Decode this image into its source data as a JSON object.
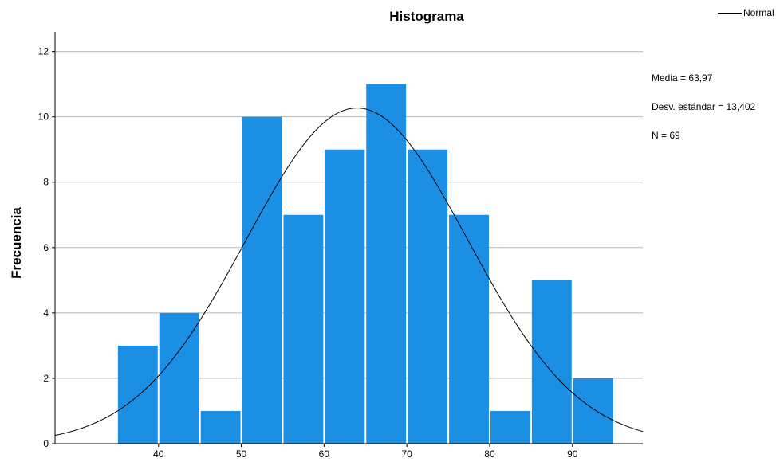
{
  "chart_data": {
    "type": "bar",
    "title": "Histograma",
    "ylabel": "Frecuencia",
    "xlabel": "",
    "bin_width": 5,
    "bins": [
      {
        "start": 35,
        "end": 40,
        "count": 3
      },
      {
        "start": 40,
        "end": 45,
        "count": 4
      },
      {
        "start": 45,
        "end": 50,
        "count": 1
      },
      {
        "start": 50,
        "end": 55,
        "count": 10
      },
      {
        "start": 55,
        "end": 60,
        "count": 7
      },
      {
        "start": 60,
        "end": 65,
        "count": 9
      },
      {
        "start": 65,
        "end": 70,
        "count": 11
      },
      {
        "start": 70,
        "end": 75,
        "count": 9
      },
      {
        "start": 75,
        "end": 80,
        "count": 7
      },
      {
        "start": 80,
        "end": 85,
        "count": 1
      },
      {
        "start": 85,
        "end": 90,
        "count": 5
      },
      {
        "start": 90,
        "end": 95,
        "count": 2
      }
    ],
    "xlim": [
      27.5,
      98.5
    ],
    "ylim": [
      0,
      12.6
    ],
    "xticks": [
      40,
      50,
      60,
      70,
      80,
      90
    ],
    "yticks": [
      0,
      2,
      4,
      6,
      8,
      10,
      12
    ],
    "grid": "horizontal",
    "bar_color": "#1a8fe3",
    "curve_color": "#000000",
    "normal": {
      "mean": 63.97,
      "sd": 13.402,
      "n": 69
    },
    "legend": {
      "label": "Normal",
      "placement": "top-right"
    },
    "stats_lines": [
      "Media = 63,97",
      "Desv. estándar = 13,402",
      "N = 69"
    ]
  }
}
